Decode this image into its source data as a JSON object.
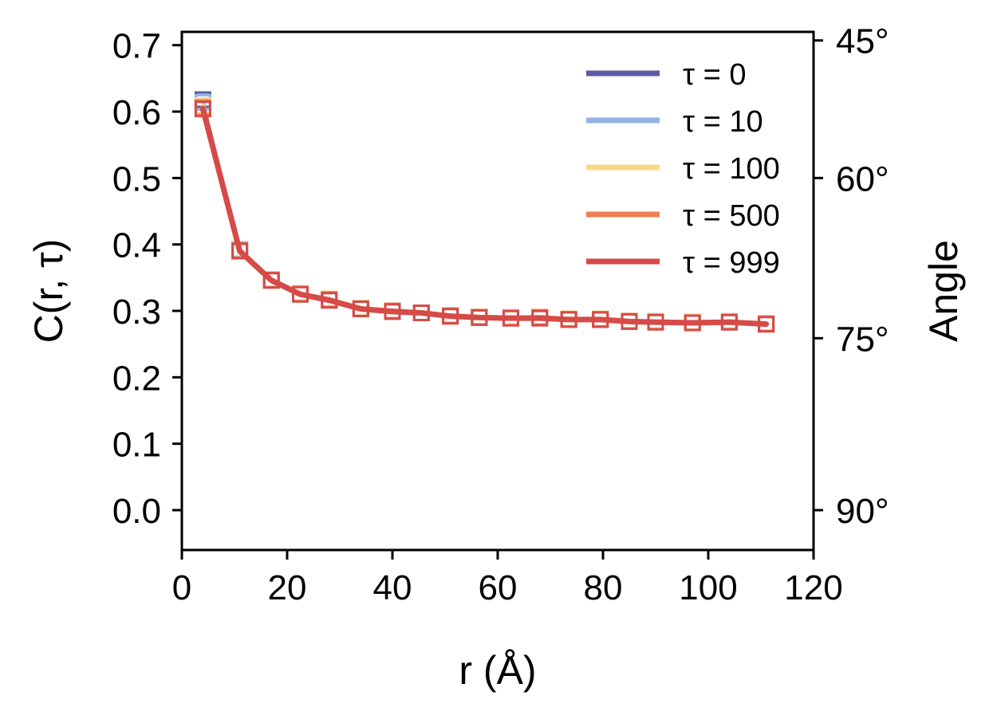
{
  "chart_data": {
    "type": "line",
    "xlabel": "r (Å)",
    "ylabel": "C(r, τ)",
    "y2label": "Angle",
    "xlim": [
      0,
      120
    ],
    "ylim": [
      -0.06,
      0.72
    ],
    "xticks": [
      "0",
      "20",
      "40",
      "60",
      "80",
      "100",
      "120"
    ],
    "yticks": [
      "0.0",
      "0.1",
      "0.2",
      "0.3",
      "0.4",
      "0.5",
      "0.6",
      "0.7"
    ],
    "y2ticks": [
      "45°",
      "60°",
      "75°",
      "90°"
    ],
    "grid": false,
    "legend_position": "top-right",
    "marker": "open-square",
    "x": [
      4,
      11,
      17,
      22.5,
      28,
      34,
      40,
      45.5,
      51,
      56.5,
      62.5,
      68,
      73.5,
      79.5,
      85,
      90,
      97,
      104,
      111
    ],
    "series": [
      {
        "name": "τ = 0",
        "color": "#5c5ba3",
        "values": [
          0.618,
          0.392,
          0.347,
          0.326,
          0.316,
          0.304,
          0.3,
          0.297,
          0.293,
          0.291,
          0.29,
          0.29,
          0.288,
          0.287,
          0.285,
          0.284,
          0.283,
          0.284,
          0.281
        ]
      },
      {
        "name": "τ = 10",
        "color": "#92b4e3",
        "values": [
          0.614,
          0.392,
          0.347,
          0.326,
          0.317,
          0.304,
          0.3,
          0.297,
          0.293,
          0.291,
          0.29,
          0.291,
          0.288,
          0.288,
          0.285,
          0.284,
          0.283,
          0.284,
          0.281
        ]
      },
      {
        "name": "τ = 100",
        "color": "#f8d98b",
        "values": [
          0.609,
          0.391,
          0.347,
          0.326,
          0.318,
          0.304,
          0.3,
          0.297,
          0.293,
          0.291,
          0.29,
          0.291,
          0.288,
          0.288,
          0.285,
          0.284,
          0.283,
          0.284,
          0.281
        ]
      },
      {
        "name": "τ = 500",
        "color": "#ef8054",
        "values": [
          0.606,
          0.391,
          0.346,
          0.325,
          0.317,
          0.303,
          0.3,
          0.297,
          0.292,
          0.29,
          0.289,
          0.29,
          0.287,
          0.287,
          0.284,
          0.283,
          0.282,
          0.283,
          0.28
        ]
      },
      {
        "name": "τ = 999",
        "color": "#d64a47",
        "values": [
          0.604,
          0.39,
          0.346,
          0.325,
          0.316,
          0.303,
          0.299,
          0.297,
          0.292,
          0.29,
          0.289,
          0.289,
          0.287,
          0.287,
          0.284,
          0.283,
          0.282,
          0.283,
          0.28
        ]
      }
    ]
  }
}
